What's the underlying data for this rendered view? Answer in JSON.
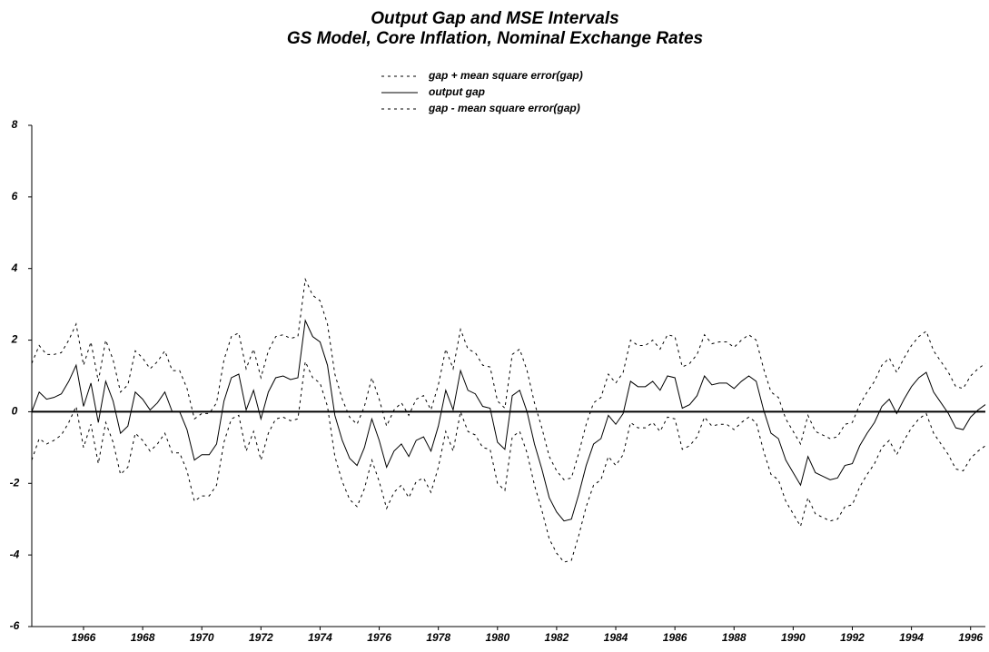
{
  "chart_data": {
    "type": "line",
    "title": "Output Gap and MSE Intervals",
    "subtitle": "GS Model, Core Inflation, Nominal Exchange Rates",
    "legend": "top center",
    "zero_line": true,
    "xlim": [
      1964.25,
      1996.5
    ],
    "xticks": [
      1966,
      1968,
      1970,
      1972,
      1974,
      1976,
      1978,
      1980,
      1982,
      1984,
      1986,
      1988,
      1990,
      1992,
      1994,
      1996
    ],
    "ylim": [
      -6,
      8
    ],
    "yticks": [
      -6,
      -4,
      -2,
      0,
      2,
      4,
      6,
      8
    ],
    "x": [
      1964.25,
      1964.5,
      1964.75,
      1965,
      1965.25,
      1965.5,
      1965.75,
      1966,
      1966.25,
      1966.5,
      1966.75,
      1967,
      1967.25,
      1967.5,
      1967.75,
      1968,
      1968.25,
      1968.5,
      1968.75,
      1969,
      1969.25,
      1969.5,
      1969.75,
      1970,
      1970.25,
      1970.5,
      1970.75,
      1971,
      1971.25,
      1971.5,
      1971.75,
      1972,
      1972.25,
      1972.5,
      1972.75,
      1973,
      1973.25,
      1973.5,
      1973.75,
      1974,
      1974.25,
      1974.5,
      1974.75,
      1975,
      1975.25,
      1975.5,
      1975.75,
      1976,
      1976.25,
      1976.5,
      1976.75,
      1977,
      1977.25,
      1977.5,
      1977.75,
      1978,
      1978.25,
      1978.5,
      1978.75,
      1979,
      1979.25,
      1979.5,
      1979.75,
      1980,
      1980.25,
      1980.5,
      1980.75,
      1981,
      1981.25,
      1981.5,
      1981.75,
      1982,
      1982.25,
      1982.5,
      1982.75,
      1983,
      1983.25,
      1983.5,
      1983.75,
      1984,
      1984.25,
      1984.5,
      1984.75,
      1985,
      1985.25,
      1985.5,
      1985.75,
      1986,
      1986.25,
      1986.5,
      1986.75,
      1987,
      1987.25,
      1987.5,
      1987.75,
      1988,
      1988.25,
      1988.5,
      1988.75,
      1989,
      1989.25,
      1989.5,
      1989.75,
      1990,
      1990.25,
      1990.5,
      1990.75,
      1991,
      1991.25,
      1991.5,
      1991.75,
      1992,
      1992.25,
      1992.5,
      1992.75,
      1993,
      1993.25,
      1993.5,
      1993.75,
      1994,
      1994.25,
      1994.5,
      1994.75,
      1995,
      1995.25,
      1995.5,
      1995.75,
      1996,
      1996.25,
      1996.5
    ],
    "series": [
      {
        "name": "gap + mean square error(gap)",
        "color": "#000000",
        "dash": "dashed",
        "values": [
          1.35,
          1.85,
          1.6,
          1.6,
          1.65,
          2.0,
          2.45,
          1.3,
          1.95,
          0.85,
          2.0,
          1.45,
          0.55,
          0.75,
          1.7,
          1.5,
          1.2,
          1.4,
          1.7,
          1.15,
          1.15,
          0.65,
          -0.2,
          -0.05,
          -0.05,
          0.25,
          1.45,
          2.1,
          2.2,
          1.2,
          1.75,
          0.95,
          1.7,
          2.1,
          2.15,
          2.05,
          2.1,
          3.7,
          3.25,
          3.1,
          2.45,
          1.05,
          0.35,
          -0.15,
          -0.35,
          0.15,
          0.95,
          0.35,
          -0.4,
          0.05,
          0.25,
          -0.1,
          0.35,
          0.45,
          0.05,
          0.75,
          1.75,
          1.2,
          2.3,
          1.75,
          1.65,
          1.3,
          1.25,
          0.3,
          0.1,
          1.6,
          1.75,
          1.15,
          0.25,
          -0.45,
          -1.25,
          -1.65,
          -1.9,
          -1.85,
          -1.15,
          -0.35,
          0.25,
          0.4,
          1.05,
          0.8,
          1.1,
          2.0,
          1.85,
          1.85,
          2.0,
          1.75,
          2.15,
          2.1,
          1.25,
          1.35,
          1.6,
          2.15,
          1.9,
          1.95,
          1.95,
          1.8,
          2.0,
          2.15,
          2.0,
          1.2,
          0.55,
          0.4,
          -0.2,
          -0.55,
          -0.9,
          -0.1,
          -0.55,
          -0.65,
          -0.75,
          -0.7,
          -0.35,
          -0.3,
          0.2,
          0.55,
          0.85,
          1.3,
          1.5,
          1.1,
          1.5,
          1.85,
          2.1,
          2.25,
          1.7,
          1.4,
          1.1,
          0.7,
          0.65,
          1.0,
          1.2,
          1.35
        ]
      },
      {
        "name": "output gap",
        "color": "#000000",
        "dash": "solid",
        "values": [
          0,
          0.55,
          0.35,
          0.4,
          0.5,
          0.85,
          1.3,
          0.15,
          0.8,
          -0.3,
          0.85,
          0.3,
          -0.6,
          -0.4,
          0.55,
          0.35,
          0.05,
          0.25,
          0.55,
          0.0,
          0.0,
          -0.5,
          -1.35,
          -1.2,
          -1.2,
          -0.9,
          0.3,
          0.95,
          1.05,
          0.05,
          0.6,
          -0.2,
          0.55,
          0.95,
          1.0,
          0.9,
          0.95,
          2.55,
          2.1,
          1.95,
          1.3,
          -0.1,
          -0.8,
          -1.3,
          -1.5,
          -1.0,
          -0.2,
          -0.8,
          -1.55,
          -1.1,
          -0.9,
          -1.25,
          -0.8,
          -0.7,
          -1.1,
          -0.4,
          0.6,
          0.05,
          1.15,
          0.6,
          0.5,
          0.15,
          0.1,
          -0.85,
          -1.05,
          0.45,
          0.6,
          0.0,
          -0.9,
          -1.6,
          -2.4,
          -2.8,
          -3.05,
          -3.0,
          -2.3,
          -1.5,
          -0.9,
          -0.75,
          -0.1,
          -0.35,
          -0.05,
          0.85,
          0.7,
          0.7,
          0.85,
          0.6,
          1.0,
          0.95,
          0.1,
          0.2,
          0.45,
          1.0,
          0.75,
          0.8,
          0.8,
          0.65,
          0.85,
          1.0,
          0.85,
          0.05,
          -0.6,
          -0.75,
          -1.35,
          -1.7,
          -2.05,
          -1.25,
          -1.7,
          -1.8,
          -1.9,
          -1.85,
          -1.5,
          -1.45,
          -0.95,
          -0.6,
          -0.3,
          0.15,
          0.35,
          -0.05,
          0.35,
          0.7,
          0.95,
          1.1,
          0.55,
          0.25,
          -0.05,
          -0.45,
          -0.5,
          -0.15,
          0.05,
          0.2
        ]
      },
      {
        "name": "gap - mean square error(gap)",
        "color": "#000000",
        "dash": "dashed",
        "values": [
          -1.35,
          -0.75,
          -0.9,
          -0.8,
          -0.65,
          -0.3,
          0.15,
          -1.0,
          -0.35,
          -1.45,
          -0.3,
          -0.85,
          -1.75,
          -1.55,
          -0.6,
          -0.8,
          -1.1,
          -0.9,
          -0.6,
          -1.15,
          -1.15,
          -1.65,
          -2.5,
          -2.35,
          -2.35,
          -2.05,
          -0.85,
          -0.2,
          -0.1,
          -1.1,
          -0.55,
          -1.35,
          -0.6,
          -0.2,
          -0.15,
          -0.25,
          -0.2,
          1.4,
          0.95,
          0.8,
          0.15,
          -1.25,
          -1.95,
          -2.45,
          -2.65,
          -2.15,
          -1.35,
          -1.95,
          -2.7,
          -2.25,
          -2.05,
          -2.4,
          -1.95,
          -1.85,
          -2.25,
          -1.55,
          -0.55,
          -1.1,
          0.0,
          -0.55,
          -0.65,
          -1.0,
          -1.05,
          -2.0,
          -2.2,
          -0.7,
          -0.55,
          -1.15,
          -2.05,
          -2.75,
          -3.55,
          -3.95,
          -4.2,
          -4.15,
          -3.45,
          -2.65,
          -2.05,
          -1.9,
          -1.25,
          -1.5,
          -1.2,
          -0.3,
          -0.45,
          -0.45,
          -0.3,
          -0.55,
          -0.15,
          -0.2,
          -1.05,
          -0.95,
          -0.7,
          -0.15,
          -0.4,
          -0.35,
          -0.35,
          -0.5,
          -0.3,
          -0.15,
          -0.3,
          -1.1,
          -1.75,
          -1.9,
          -2.5,
          -2.85,
          -3.2,
          -2.4,
          -2.85,
          -2.95,
          -3.05,
          -3.0,
          -2.65,
          -2.6,
          -2.1,
          -1.75,
          -1.45,
          -1.0,
          -0.8,
          -1.2,
          -0.8,
          -0.45,
          -0.2,
          -0.05,
          -0.6,
          -0.9,
          -1.2,
          -1.6,
          -1.65,
          -1.3,
          -1.1,
          -0.95
        ]
      }
    ]
  }
}
